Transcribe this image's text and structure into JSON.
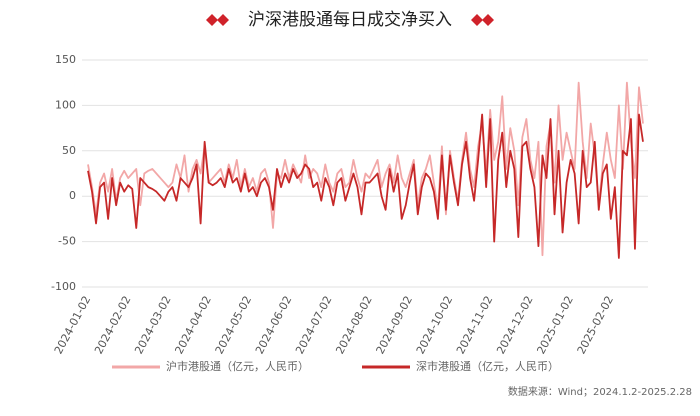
{
  "chart_data": {
    "type": "line",
    "title": "沪深港股通每日成交净买入",
    "source": "数据来源：Wind；2024.1.2-2025.2.28",
    "categories": [
      "2024-01-02",
      null,
      null,
      null,
      null,
      null,
      null,
      null,
      null,
      null,
      "2024-02-02",
      null,
      null,
      null,
      null,
      null,
      null,
      null,
      null,
      null,
      "2024-03-02",
      null,
      null,
      null,
      null,
      null,
      null,
      null,
      null,
      null,
      "2024-04-02",
      null,
      null,
      null,
      null,
      null,
      null,
      null,
      null,
      null,
      "2024-05-02",
      null,
      null,
      null,
      null,
      null,
      null,
      null,
      null,
      null,
      "2024-06-02",
      null,
      null,
      null,
      null,
      null,
      null,
      null,
      null,
      null,
      "2024-07-02",
      null,
      null,
      null,
      null,
      null,
      null,
      null,
      null,
      null,
      "2024-08-02",
      null,
      null,
      null,
      null,
      null,
      null,
      null,
      null,
      null,
      "2024-09-02",
      null,
      null,
      null,
      null,
      null,
      null,
      null,
      null,
      null,
      "2024-10-02",
      null,
      null,
      null,
      null,
      null,
      null,
      null,
      null,
      null,
      "2024-11-02",
      null,
      null,
      null,
      null,
      null,
      null,
      null,
      null,
      null,
      "2024-12-02",
      null,
      null,
      null,
      null,
      null,
      null,
      null,
      null,
      null,
      "2025-01-02",
      null,
      null,
      null,
      null,
      null,
      null,
      null,
      null,
      null,
      "2025-02-02",
      null,
      null,
      null,
      null,
      null,
      null,
      null,
      null
    ],
    "series": [
      {
        "name": "沪市港股通（亿元，人民币）",
        "color": "#f2a7a7",
        "values": [
          35,
          10,
          -20,
          15,
          25,
          5,
          30,
          -5,
          20,
          28,
          20,
          25,
          30,
          -10,
          25,
          28,
          30,
          25,
          20,
          15,
          10,
          15,
          35,
          20,
          45,
          5,
          30,
          40,
          25,
          55,
          15,
          20,
          25,
          30,
          15,
          35,
          20,
          40,
          10,
          30,
          10,
          20,
          5,
          25,
          30,
          15,
          -35,
          25,
          20,
          40,
          20,
          35,
          25,
          15,
          45,
          20,
          30,
          25,
          10,
          35,
          15,
          5,
          25,
          30,
          10,
          15,
          40,
          20,
          5,
          25,
          20,
          30,
          40,
          10,
          25,
          35,
          15,
          45,
          20,
          10,
          25,
          40,
          -10,
          20,
          30,
          45,
          15,
          -15,
          55,
          -20,
          50,
          20,
          -5,
          40,
          70,
          30,
          10,
          55,
          80,
          25,
          95,
          40,
          60,
          110,
          30,
          75,
          50,
          -10,
          65,
          85,
          40,
          20,
          60,
          -65,
          55,
          80,
          15,
          100,
          40,
          70,
          50,
          30,
          125,
          60,
          20,
          80,
          45,
          -10,
          35,
          70,
          40,
          20,
          100,
          30,
          125,
          60,
          20,
          120,
          80
        ]
      },
      {
        "name": "深市港股通（亿元，人民币）",
        "color": "#c62828",
        "values": [
          28,
          5,
          -30,
          10,
          15,
          -25,
          20,
          -10,
          15,
          5,
          12,
          8,
          -35,
          20,
          15,
          10,
          8,
          5,
          0,
          -5,
          5,
          10,
          -5,
          20,
          15,
          10,
          20,
          35,
          -30,
          60,
          15,
          12,
          15,
          20,
          10,
          30,
          15,
          20,
          5,
          25,
          5,
          10,
          0,
          15,
          20,
          10,
          -15,
          30,
          10,
          25,
          15,
          30,
          20,
          25,
          35,
          30,
          10,
          15,
          -5,
          20,
          10,
          -10,
          15,
          20,
          -5,
          10,
          25,
          10,
          -20,
          15,
          15,
          20,
          25,
          0,
          -15,
          30,
          5,
          25,
          -25,
          -10,
          15,
          35,
          -20,
          10,
          25,
          20,
          5,
          -25,
          45,
          -15,
          45,
          15,
          -10,
          35,
          60,
          20,
          -5,
          40,
          90,
          10,
          85,
          -50,
          40,
          70,
          10,
          50,
          30,
          -45,
          55,
          60,
          30,
          10,
          -55,
          45,
          20,
          85,
          -20,
          50,
          -40,
          15,
          40,
          25,
          -30,
          50,
          10,
          15,
          60,
          -15,
          25,
          35,
          -25,
          10,
          -68,
          50,
          45,
          85,
          -58,
          90,
          60
        ]
      }
    ],
    "ylim": [
      -100,
      150
    ],
    "yticks": [
      -100,
      -50,
      0,
      50,
      100,
      150
    ],
    "grid": true
  }
}
